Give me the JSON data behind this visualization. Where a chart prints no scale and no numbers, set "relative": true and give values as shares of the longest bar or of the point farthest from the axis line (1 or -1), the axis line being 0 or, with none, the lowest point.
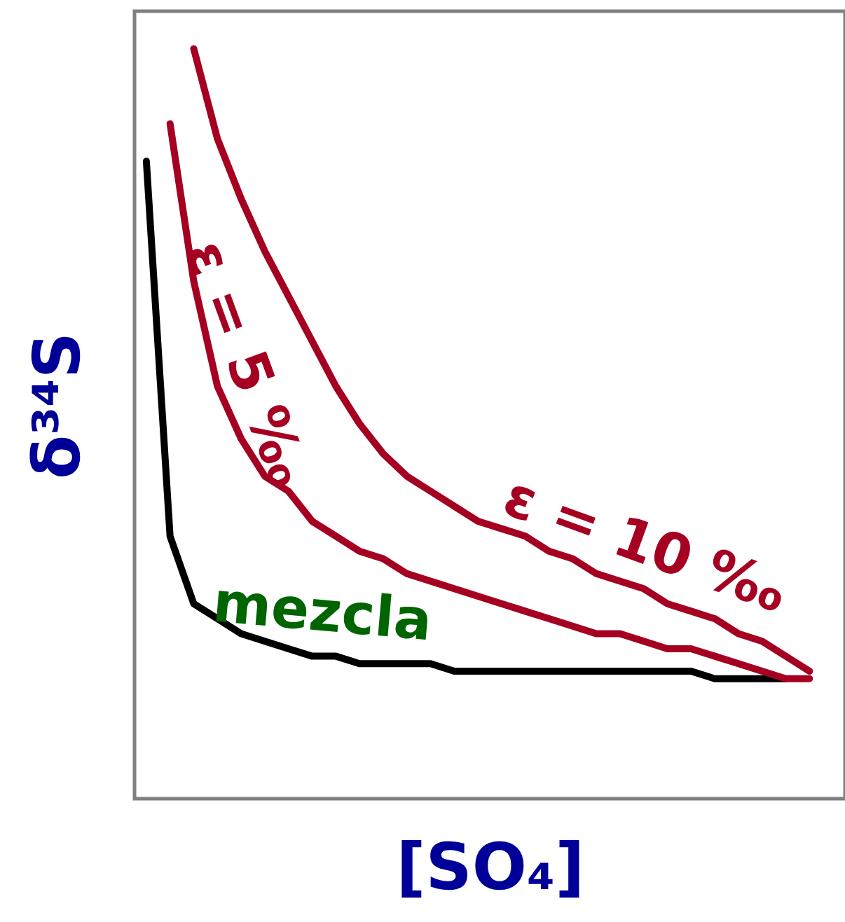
{
  "chart_data": {
    "type": "line",
    "relative": true,
    "xlabel": "[SO₄]",
    "ylabel": "δ³⁴S",
    "ylim": [
      0,
      1.05
    ],
    "tick_labels": false,
    "line_style": "solid",
    "categories": [
      null,
      null,
      null,
      null,
      null,
      null,
      null,
      null,
      null,
      null,
      null,
      null,
      null,
      null,
      null,
      null,
      null,
      null,
      null,
      null,
      null,
      null,
      null,
      null,
      null,
      null,
      null,
      null,
      null,
      null
    ],
    "series": [
      {
        "name": "mezcla",
        "color": "#000000",
        "values": [
          0.85,
          0.35,
          0.26,
          0.24,
          0.22,
          0.21,
          0.2,
          0.19,
          0.19,
          0.18,
          0.18,
          0.18,
          0.18,
          0.17,
          0.17,
          0.17,
          0.17,
          0.17,
          0.17,
          0.17,
          0.17,
          0.17,
          0.17,
          0.17,
          0.16,
          0.16,
          0.16,
          0.16,
          null,
          null
        ]
      },
      {
        "name": "ε = 5 ‰",
        "color": "#a50021",
        "values": [
          null,
          0.9,
          0.69,
          0.55,
          0.48,
          0.43,
          0.41,
          0.37,
          0.35,
          0.33,
          0.32,
          0.3,
          0.29,
          0.28,
          0.27,
          0.26,
          0.25,
          0.24,
          0.23,
          0.22,
          0.22,
          0.21,
          0.2,
          0.2,
          0.19,
          0.18,
          0.17,
          0.16,
          0.16,
          null
        ]
      },
      {
        "name": "ε = 10 ‰",
        "color": "#a50021",
        "values": [
          null,
          null,
          1.0,
          0.88,
          0.8,
          0.73,
          0.67,
          0.61,
          0.55,
          0.5,
          0.46,
          0.43,
          0.41,
          0.39,
          0.37,
          0.36,
          0.35,
          0.33,
          0.32,
          0.3,
          0.29,
          0.28,
          0.26,
          0.25,
          0.24,
          0.22,
          0.21,
          0.19,
          0.17,
          null
        ]
      }
    ]
  }
}
